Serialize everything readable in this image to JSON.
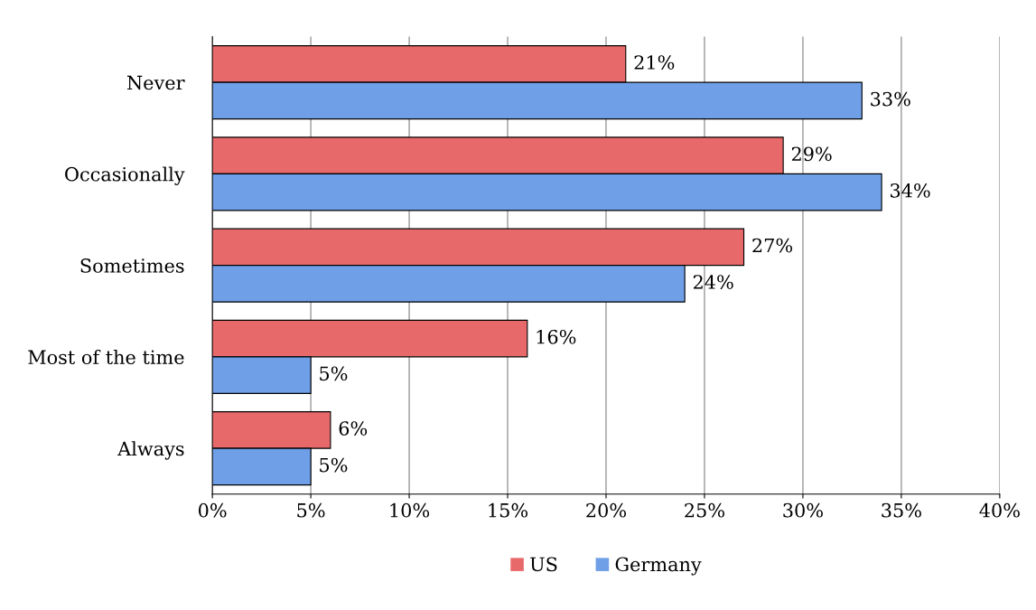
{
  "chart_data": {
    "type": "bar",
    "orientation": "horizontal",
    "categories": [
      "Never",
      "Occasionally",
      "Sometimes",
      "Most of the time",
      "Always"
    ],
    "series": [
      {
        "name": "US",
        "color": "#e8696a",
        "values": [
          21,
          29,
          27,
          16,
          6
        ],
        "value_labels": [
          "21%",
          "29%",
          "27%",
          "16%",
          "6%"
        ]
      },
      {
        "name": "Germany",
        "color": "#6f9fe6",
        "values": [
          33,
          34,
          24,
          5,
          5
        ],
        "value_labels": [
          "33%",
          "34%",
          "24%",
          "5%",
          "5%"
        ]
      }
    ],
    "xlim": [
      0,
      40
    ],
    "xticks": [
      {
        "value": 0,
        "label": "0%"
      },
      {
        "value": 5,
        "label": "5%"
      },
      {
        "value": 10,
        "label": "10%"
      },
      {
        "value": 15,
        "label": "15%"
      },
      {
        "value": 20,
        "label": "20%"
      },
      {
        "value": 25,
        "label": "25%"
      },
      {
        "value": 30,
        "label": "30%"
      },
      {
        "value": 35,
        "label": "35%"
      },
      {
        "value": 40,
        "label": "40%"
      }
    ],
    "grid": "x",
    "legend": "bottom"
  }
}
